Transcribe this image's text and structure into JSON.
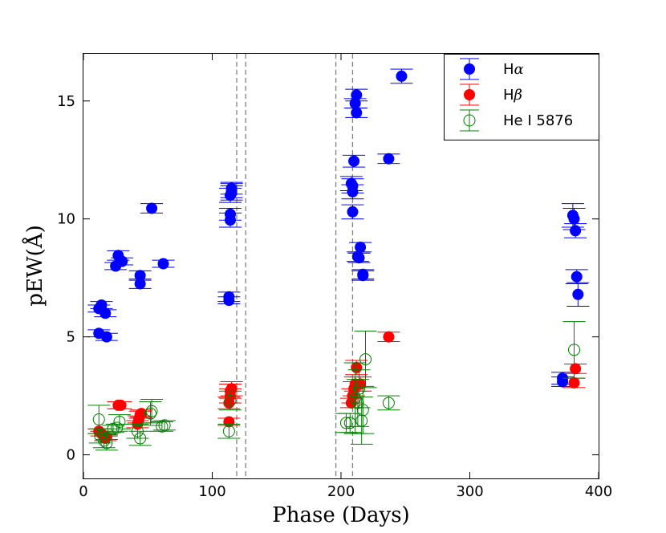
{
  "chart_data": {
    "type": "scatter",
    "xlabel": "Phase (Days)",
    "ylabel": "pEW(Å)",
    "xlim": [
      0,
      400
    ],
    "ylim": [
      -1,
      17
    ],
    "xticks": [
      0,
      100,
      200,
      300,
      400
    ],
    "yticks": [
      0,
      5,
      10,
      15
    ],
    "grid": false,
    "legend_position": "top-right",
    "vlines": [
      119,
      126,
      196,
      209
    ],
    "series": [
      {
        "name": "Hα",
        "legend_main": "H",
        "legend_greek": "α",
        "marker": "filled-circle",
        "color": "#0000ff",
        "x": [
          12,
          12,
          14,
          17,
          18,
          25,
          27,
          30,
          44,
          44,
          53,
          62,
          113,
          113,
          114,
          114,
          114,
          115,
          115,
          115,
          208,
          209,
          209,
          209,
          210,
          211,
          212,
          212,
          213,
          214,
          215,
          217,
          217,
          237,
          247,
          372,
          372,
          380,
          381,
          382,
          383,
          384
        ],
        "y": [
          5.15,
          6.2,
          6.35,
          6.0,
          5.0,
          8.0,
          8.45,
          8.2,
          7.6,
          7.25,
          10.45,
          8.1,
          6.55,
          6.7,
          10.2,
          9.95,
          11.0,
          11.2,
          11.3,
          11.1,
          11.5,
          11.4,
          11.15,
          10.3,
          12.45,
          14.9,
          14.5,
          15.25,
          8.4,
          8.35,
          8.8,
          7.65,
          7.6,
          12.55,
          16.05,
          3.25,
          3.1,
          10.15,
          10.0,
          9.5,
          7.55,
          6.8
        ],
        "err": [
          0.15,
          0.15,
          0.15,
          0.15,
          0.15,
          0.15,
          0.2,
          0.15,
          0.2,
          0.2,
          0.2,
          0.15,
          0.15,
          0.2,
          0.25,
          0.3,
          0.3,
          0.3,
          0.25,
          0.3,
          0.3,
          0.3,
          0.3,
          0.3,
          0.25,
          0.2,
          0.2,
          0.25,
          0.2,
          0.2,
          0.2,
          0.2,
          0.2,
          0.2,
          0.3,
          0.25,
          0.2,
          0.5,
          0.45,
          0.3,
          0.3,
          0.5
        ]
      },
      {
        "name": "Hβ",
        "legend_main": "H",
        "legend_greek": "β",
        "marker": "filled-circle",
        "color": "#ff0000",
        "x": [
          12,
          14,
          17,
          18,
          27,
          29,
          42,
          43,
          44,
          45,
          113,
          113,
          114,
          114,
          115,
          208,
          209,
          210,
          211,
          212,
          215,
          237,
          381,
          382
        ],
        "y": [
          1.0,
          0.9,
          0.7,
          0.75,
          2.1,
          2.1,
          1.3,
          1.5,
          1.7,
          1.75,
          1.4,
          2.2,
          2.5,
          2.7,
          2.8,
          2.2,
          2.5,
          2.8,
          3.0,
          3.7,
          3.0,
          5.0,
          3.05,
          3.65
        ],
        "err": [
          0.1,
          0.1,
          0.1,
          0.1,
          0.15,
          0.15,
          0.15,
          0.15,
          0.15,
          0.15,
          0.15,
          0.25,
          0.3,
          0.3,
          0.3,
          0.2,
          0.3,
          0.3,
          0.3,
          0.3,
          0.3,
          0.2,
          0.2,
          0.2
        ]
      },
      {
        "name": "He I 5876",
        "legend_main": "He I 5876",
        "legend_greek": "",
        "marker": "open-circle",
        "color": "#008000",
        "x": [
          12,
          13,
          16,
          18,
          23,
          26,
          28,
          42,
          44,
          52,
          53,
          61,
          63,
          113,
          114,
          204,
          207,
          211,
          213,
          214,
          216,
          217,
          219,
          237,
          381
        ],
        "y": [
          1.5,
          0.8,
          0.6,
          0.5,
          1.1,
          1.15,
          1.4,
          1.0,
          0.7,
          1.75,
          1.85,
          1.2,
          1.25,
          1.0,
          2.3,
          1.35,
          1.35,
          2.4,
          2.2,
          2.8,
          1.45,
          1.9,
          4.05,
          2.2,
          4.45
        ],
        "err": [
          0.6,
          0.3,
          0.3,
          0.3,
          0.15,
          0.15,
          0.3,
          0.3,
          0.3,
          0.5,
          0.5,
          0.2,
          0.2,
          0.3,
          0.4,
          0.4,
          0.4,
          1.5,
          1.0,
          0.8,
          1.0,
          1.0,
          1.2,
          0.3,
          1.2
        ]
      }
    ]
  }
}
